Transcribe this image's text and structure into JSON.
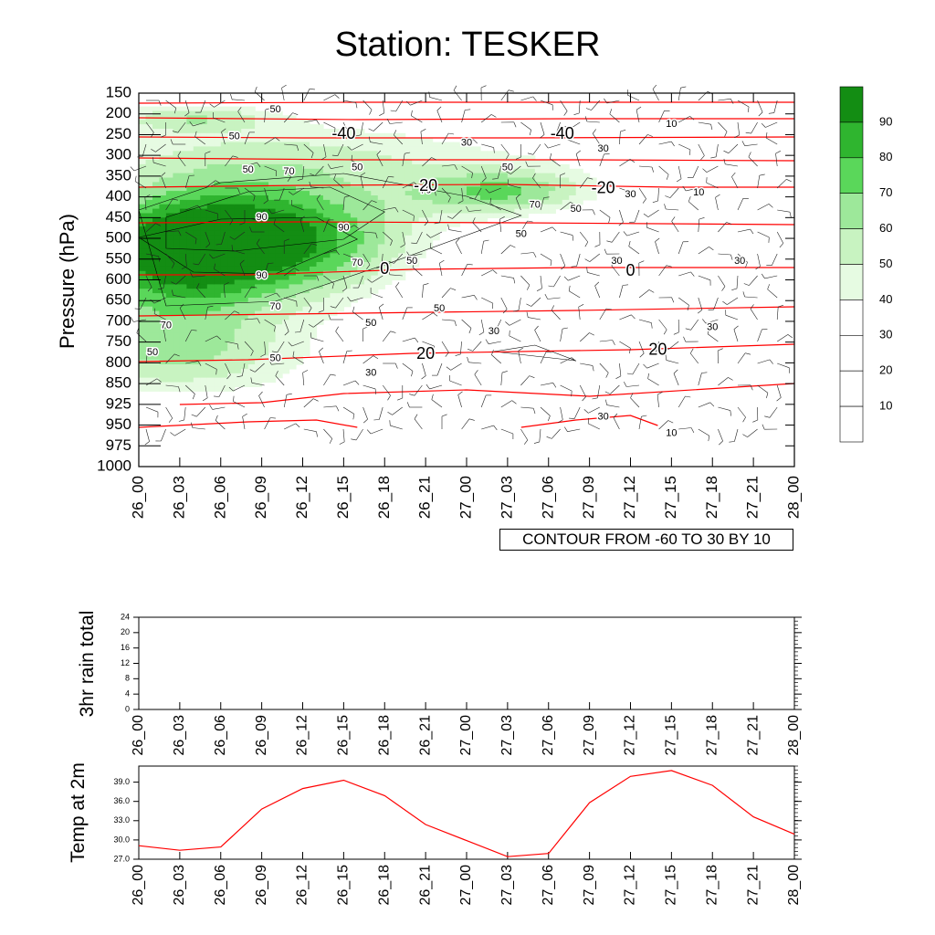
{
  "title": "Station: TESKER",
  "colors": {
    "fill_levels": [
      "#ffffff",
      "#ffffff",
      "#ffffff",
      "#e6fbe2",
      "#c8f3c1",
      "#9de89a",
      "#5ad75a",
      "#2fb52f",
      "#138d13"
    ],
    "contour_line": "#000000",
    "temp_line": "#ff0000"
  },
  "chart_data": [
    {
      "type": "heatmap",
      "name": "cross-section",
      "ylabel": "Pressure (hPa)",
      "pressure_levels": [
        150,
        200,
        250,
        300,
        350,
        400,
        450,
        500,
        550,
        600,
        650,
        700,
        750,
        800,
        850,
        925,
        950,
        975,
        1000
      ],
      "time_labels": [
        "26_00",
        "26_03",
        "26_06",
        "26_09",
        "26_12",
        "26_15",
        "26_18",
        "26_21",
        "27_00",
        "27_03",
        "27_06",
        "27_09",
        "27_12",
        "27_15",
        "27_18",
        "27_21",
        "28_00"
      ],
      "colorbar_levels": [
        10,
        20,
        30,
        40,
        50,
        60,
        70,
        80,
        90
      ],
      "colorbar_labels": [
        "10",
        "20",
        "30",
        "40",
        "50",
        "60",
        "70",
        "80",
        "90"
      ],
      "contour_info": "CONTOUR FROM -60 TO 30 BY 10",
      "humidity_contour_labels": [
        {
          "t": "26_10",
          "p": 190,
          "text": "50"
        },
        {
          "t": "26_07",
          "p": 255,
          "text": "50"
        },
        {
          "t": "26_08",
          "p": 335,
          "text": "50"
        },
        {
          "t": "26_11",
          "p": 340,
          "text": "70"
        },
        {
          "t": "26_16",
          "p": 330,
          "text": "50"
        },
        {
          "t": "26_21",
          "p": 385,
          "text": "70"
        },
        {
          "t": "27_03",
          "p": 330,
          "text": "50"
        },
        {
          "t": "27_00",
          "p": 270,
          "text": "30"
        },
        {
          "t": "27_15",
          "p": 225,
          "text": "10"
        },
        {
          "t": "27_10",
          "p": 285,
          "text": "30"
        },
        {
          "t": "27_17",
          "p": 390,
          "text": "10"
        },
        {
          "t": "27_12",
          "p": 395,
          "text": "30"
        },
        {
          "t": "27_05",
          "p": 420,
          "text": "70"
        },
        {
          "t": "27_08",
          "p": 430,
          "text": "50"
        },
        {
          "t": "27_04",
          "p": 490,
          "text": "50"
        },
        {
          "t": "26_09",
          "p": 450,
          "text": "90"
        },
        {
          "t": "26_15",
          "p": 475,
          "text": "90"
        },
        {
          "t": "26_16",
          "p": 560,
          "text": "70"
        },
        {
          "t": "26_20",
          "p": 555,
          "text": "50"
        },
        {
          "t": "27_11",
          "p": 555,
          "text": "30"
        },
        {
          "t": "27_20",
          "p": 555,
          "text": "30"
        },
        {
          "t": "26_09",
          "p": 590,
          "text": "90"
        },
        {
          "t": "26_10",
          "p": 665,
          "text": "70"
        },
        {
          "t": "26_22",
          "p": 670,
          "text": "50"
        },
        {
          "t": "26_02",
          "p": 710,
          "text": "70"
        },
        {
          "t": "26_17",
          "p": 705,
          "text": "50"
        },
        {
          "t": "27_02",
          "p": 725,
          "text": "30"
        },
        {
          "t": "27_18",
          "p": 715,
          "text": "30"
        },
        {
          "t": "26_01",
          "p": 775,
          "text": "50"
        },
        {
          "t": "26_10",
          "p": 790,
          "text": "50"
        },
        {
          "t": "26_17",
          "p": 825,
          "text": "30"
        },
        {
          "t": "27_10",
          "p": 940,
          "text": "30"
        },
        {
          "t": "27_15",
          "p": 960,
          "text": "10"
        }
      ],
      "temperature_contour_labels": [
        {
          "t": "26_15",
          "p": 250,
          "text": "-40"
        },
        {
          "t": "27_07",
          "p": 250,
          "text": "-40"
        },
        {
          "t": "26_21",
          "p": 375,
          "text": "-20"
        },
        {
          "t": "27_10",
          "p": 380,
          "text": "-20"
        },
        {
          "t": "26_18",
          "p": 575,
          "text": "0"
        },
        {
          "t": "27_12",
          "p": 580,
          "text": "0"
        },
        {
          "t": "26_21",
          "p": 780,
          "text": "20"
        },
        {
          "t": "27_14",
          "p": 770,
          "text": "20"
        }
      ]
    },
    {
      "type": "bar",
      "name": "rain",
      "ylabel": "3hr rain total",
      "x": [
        "26_00",
        "26_03",
        "26_06",
        "26_09",
        "26_12",
        "26_15",
        "26_18",
        "26_21",
        "27_00",
        "27_03",
        "27_06",
        "27_09",
        "27_12",
        "27_15",
        "27_18",
        "27_21",
        "28_00"
      ],
      "values": [
        0,
        0,
        0,
        0,
        0,
        0,
        0,
        0,
        0,
        0,
        0,
        0,
        0,
        0,
        0,
        0,
        0
      ],
      "ylim": [
        0,
        24
      ],
      "yticks": [
        "0",
        "4",
        "8",
        "12",
        "16",
        "20",
        "24"
      ]
    },
    {
      "type": "line",
      "name": "temp",
      "ylabel": "Temp at 2m",
      "x": [
        "26_00",
        "26_03",
        "26_06",
        "26_09",
        "26_12",
        "26_15",
        "26_18",
        "26_21",
        "27_00",
        "27_03",
        "27_06",
        "27_09",
        "27_12",
        "27_15",
        "27_18",
        "27_21",
        "28_00"
      ],
      "values": [
        29.1,
        28.4,
        28.9,
        34.8,
        38.0,
        39.3,
        36.9,
        32.4,
        29.9,
        27.4,
        27.9,
        35.8,
        39.9,
        40.8,
        38.5,
        33.6,
        30.9
      ],
      "ylim": [
        27.0,
        41.5
      ],
      "yticks": [
        "27.0",
        "30.0",
        "33.0",
        "36.0",
        "39.0"
      ]
    }
  ]
}
